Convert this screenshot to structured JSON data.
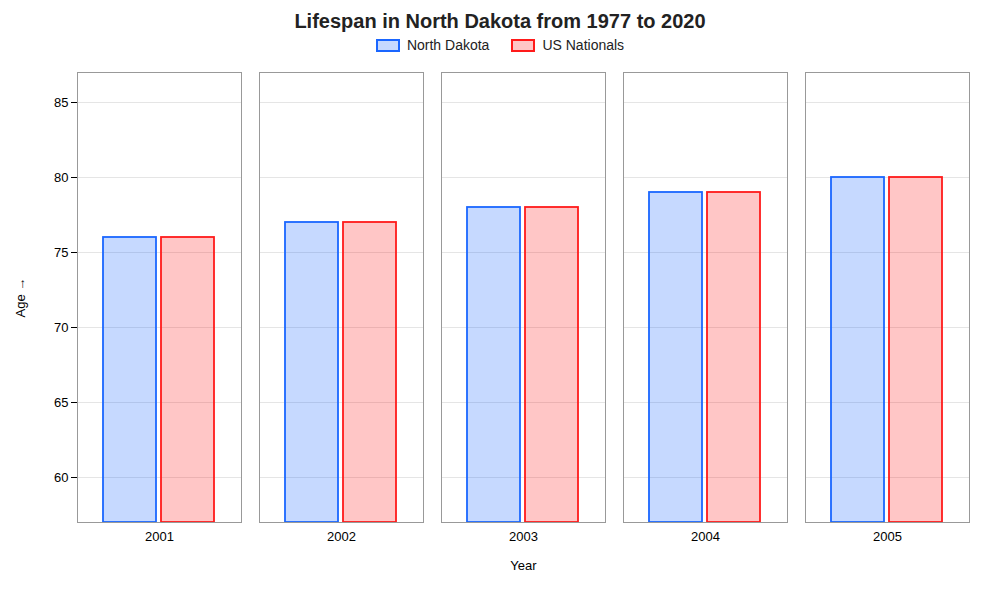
{
  "chart_data": {
    "type": "bar",
    "title": "Lifespan in North Dakota from 1977 to 2020",
    "xlabel": "Year",
    "ylabel": "Age",
    "categories": [
      2001,
      2002,
      2003,
      2004,
      2005
    ],
    "series": [
      {
        "name": "North Dakota",
        "color": "#1a66ff",
        "values": [
          76.0,
          77.0,
          78.0,
          79.0,
          80.0
        ]
      },
      {
        "name": "US Nationals",
        "color": "#ff1a1a",
        "values": [
          76.0,
          77.0,
          78.0,
          79.0,
          80.0
        ]
      }
    ],
    "ylim": [
      57,
      87
    ],
    "yticks": [
      60,
      65,
      70,
      75,
      80,
      85
    ],
    "grid": true,
    "legend": "top"
  }
}
